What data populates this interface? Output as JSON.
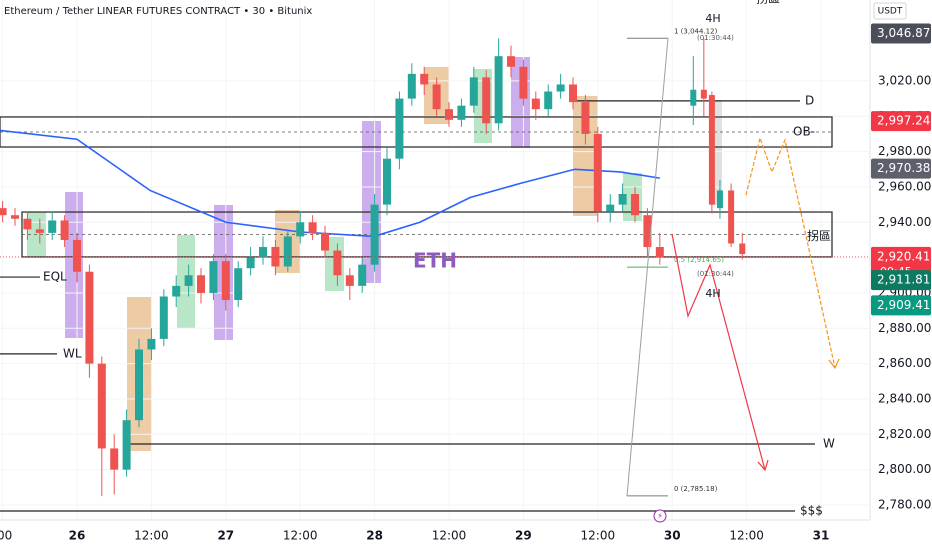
{
  "chart_data": {
    "type": "candlestick",
    "title": "Ethereum / Tether LINEAR FUTURES CONTRACT • 30 • Bitunix",
    "watermark": "ETH",
    "y_unit": "USDT",
    "up_color": "#26a69a",
    "down_color": "#ef5350",
    "xlim": [
      -12.42,
      127.9
    ],
    "ylim": [
      2771.5,
      3065.8
    ],
    "xticks": [
      {
        "value": -12,
        "label": ":00"
      },
      26,
      {
        "value": 12,
        "label": "12:00"
      },
      27,
      {
        "value": 36,
        "label": "12:00"
      },
      28,
      {
        "value": 60,
        "label": "12:00"
      },
      29,
      {
        "value": 84,
        "label": "12:00"
      },
      30,
      {
        "value": 108,
        "label": "12:00"
      },
      31
    ],
    "xtick_positions": [
      -12,
      0,
      12,
      24,
      36,
      48,
      60,
      72,
      84,
      96,
      108,
      120
    ],
    "yticks": [
      {
        "value": 2780,
        "label": "2,780.00"
      },
      {
        "value": 2800,
        "label": "2,800.00"
      },
      {
        "value": 2820,
        "label": "2,820.00"
      },
      {
        "value": 2840,
        "label": "2,840.00"
      },
      {
        "value": 2860,
        "label": "2,860.00"
      },
      {
        "value": 2880,
        "label": "2,880.00"
      },
      {
        "value": 2900,
        "label": "2,900.00"
      },
      {
        "value": 2920,
        "label": "2,920.00"
      },
      {
        "value": 2940,
        "label": "2,940.00"
      },
      {
        "value": 2960,
        "label": "2,960.00"
      },
      {
        "value": 2980,
        "label": "2,980.00"
      },
      {
        "value": 3000,
        "label": "3,000.00"
      },
      {
        "value": 3020,
        "label": "3,020.00"
      }
    ],
    "candles": {
      "x": [
        -12,
        -10,
        -8,
        -6,
        -4,
        -2,
        0,
        2,
        4,
        6,
        8,
        10,
        12,
        14,
        16,
        18,
        20,
        22,
        24,
        26,
        28,
        30,
        32,
        34,
        36,
        38,
        40,
        42,
        44,
        46,
        48,
        50,
        52,
        54,
        56,
        58,
        60,
        62,
        64,
        66,
        68,
        70,
        72,
        74,
        76,
        78,
        80,
        82,
        84,
        86,
        88,
        90,
        92,
        94
      ],
      "open": [
        2948,
        2944,
        2942,
        2936,
        2934,
        2941,
        2930,
        2912,
        2860,
        2812,
        2800,
        2828,
        2868,
        2874,
        2898,
        2904,
        2910,
        2900,
        2918,
        2896,
        2914,
        2920,
        2926,
        2915,
        2932,
        2940,
        2934,
        2924,
        2910,
        2904,
        2916,
        2950,
        2976,
        3010,
        3024,
        3018,
        3004,
        2998,
        3006,
        3022,
        2996,
        3034,
        3028,
        3010,
        3004,
        3014,
        3018,
        3008,
        2990,
        2946,
        2950,
        2956,
        2944,
        2926
      ],
      "high": [
        2952,
        2948,
        2946,
        2942,
        2946,
        2944,
        2934,
        2916,
        2864,
        2820,
        2834,
        2874,
        2880,
        2902,
        2910,
        2916,
        2914,
        2922,
        2922,
        2918,
        2926,
        2932,
        2930,
        2936,
        2946,
        2944,
        2938,
        2928,
        2914,
        2920,
        2956,
        2982,
        3014,
        3030,
        3028,
        3022,
        3008,
        3010,
        3028,
        3026,
        3044,
        3040,
        3032,
        3014,
        3018,
        3024,
        3022,
        3012,
        2994,
        2956,
        2962,
        2960,
        2948,
        2934
      ],
      "low": [
        2940,
        2938,
        2930,
        2928,
        2930,
        2926,
        2906,
        2852,
        2785,
        2786,
        2796,
        2824,
        2862,
        2870,
        2892,
        2898,
        2894,
        2896,
        2890,
        2892,
        2910,
        2916,
        2910,
        2912,
        2928,
        2930,
        2920,
        2904,
        2896,
        2900,
        2912,
        2944,
        2970,
        3006,
        3012,
        3000,
        2994,
        2994,
        3002,
        2990,
        2992,
        3022,
        3006,
        2998,
        3000,
        3010,
        3004,
        2984,
        2940,
        2940,
        2946,
        2940,
        2920,
        2916
      ],
      "close": [
        2944,
        2942,
        2936,
        2934,
        2941,
        2930,
        2912,
        2860,
        2812,
        2800,
        2828,
        2868,
        2874,
        2898,
        2904,
        2910,
        2900,
        2918,
        2896,
        2914,
        2920,
        2926,
        2915,
        2932,
        2940,
        2934,
        2924,
        2910,
        2904,
        2916,
        2950,
        2976,
        3010,
        3024,
        3018,
        3004,
        2998,
        3006,
        3022,
        2996,
        3034,
        3028,
        3010,
        3004,
        3014,
        3018,
        3008,
        2990,
        2946,
        2950,
        2956,
        2944,
        2926,
        2920
      ]
    },
    "projection_candles": {
      "x": [
        99.4,
        101.1,
        102.4,
        103.7,
        105.5,
        107.3
      ],
      "open": [
        3006,
        3015,
        3012,
        2948,
        2958,
        2928
      ],
      "high": [
        3034,
        3044,
        3014,
        2964,
        2962,
        2934
      ],
      "low": [
        2995,
        3000,
        2945,
        2942,
        2926,
        2919
      ],
      "close": [
        3015,
        3010,
        2950,
        2958,
        2928,
        2922
      ]
    },
    "moving_average": {
      "color": "#2962ff",
      "x": [
        -12.4,
        0,
        11.8,
        24,
        36,
        47.9,
        55.3,
        63.4,
        71.5,
        80.3,
        87.6,
        94
      ],
      "values": [
        2992,
        2987,
        2958,
        2940,
        2934.5,
        2932,
        2940,
        2954,
        2962,
        2970,
        2968.5,
        2965
      ]
    },
    "levels": [
      {
        "label": "D",
        "value": 3008.7
      },
      {
        "label": "W",
        "value": 2814.5
      },
      {
        "label": "EQL",
        "value": 2909
      },
      {
        "label": "WL",
        "value": 2865.5
      },
      {
        "label": "$$$",
        "value": 2776.6
      }
    ],
    "zones": [
      {
        "label": "OB-",
        "top": 2999.6,
        "bottom": 2982.6
      },
      {
        "label": "拐區",
        "top": 2945.8,
        "bottom": 2920.4
      }
    ],
    "fib": [
      {
        "label": "1 (3,044.12)",
        "value": 3044.12
      },
      {
        "label": "0.5 (2,914.65)",
        "value": 2914.65
      },
      {
        "label": "0 (2,785.18)",
        "value": 2785.18
      }
    ],
    "notes": [
      "4H",
      "(01:30:44)",
      "(01:30:44)",
      "4H",
      "拐區"
    ],
    "price_labels": [
      {
        "label": "3,046.87",
        "value": 3046.87,
        "color": "#4a4e59"
      },
      {
        "label": "2,997.24",
        "value": 2997.24,
        "color": "#f23645"
      },
      {
        "label": "2,970.38",
        "value": 2970.38,
        "color": "#5d606b"
      },
      {
        "label": "2,920.41",
        "value": 2920.41,
        "color": "#f23645",
        "timer": "00:45"
      },
      {
        "label": "2,911.81",
        "value": 2911.81,
        "color": "#0b7a60"
      },
      {
        "label": "2,909.41",
        "value": 2909.41,
        "color": "#089981"
      }
    ]
  }
}
